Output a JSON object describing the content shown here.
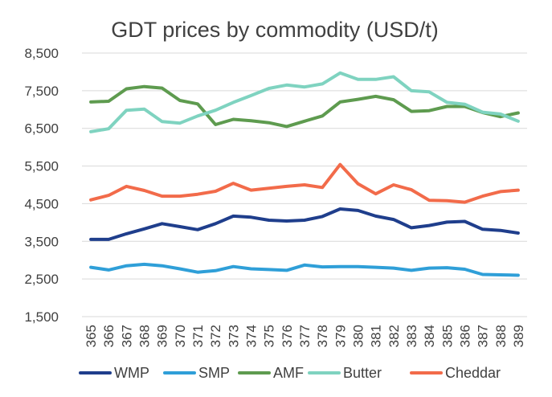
{
  "chart_data": {
    "type": "line",
    "title": "GDT prices by commodity (USD/t)",
    "xlabel": "",
    "ylabel": "",
    "ylim": [
      1500,
      8500
    ],
    "yticks": [
      1500,
      2500,
      3500,
      4500,
      5500,
      6500,
      7500,
      8500
    ],
    "ytick_labels": [
      "1,500",
      "2,500",
      "3,500",
      "4,500",
      "5,500",
      "6,500",
      "7,500",
      "8,500"
    ],
    "grid": true,
    "legend_position": "bottom",
    "categories": [
      "365",
      "366",
      "367",
      "368",
      "369",
      "370",
      "371",
      "372",
      "373",
      "374",
      "375",
      "376",
      "377",
      "378",
      "379",
      "380",
      "381",
      "382",
      "383",
      "384",
      "385",
      "386",
      "387",
      "388",
      "389"
    ],
    "series": [
      {
        "name": "WMP",
        "color": "#1f3e8c",
        "values": [
          3550,
          3550,
          3700,
          3830,
          3970,
          3890,
          3810,
          3970,
          4170,
          4140,
          4060,
          4040,
          4060,
          4160,
          4360,
          4320,
          4170,
          4080,
          3860,
          3920,
          4010,
          4030,
          3820,
          3790,
          3720
        ]
      },
      {
        "name": "SMP",
        "color": "#2f9fd8",
        "values": [
          2810,
          2740,
          2850,
          2890,
          2850,
          2770,
          2680,
          2720,
          2830,
          2770,
          2750,
          2730,
          2870,
          2820,
          2830,
          2830,
          2810,
          2790,
          2730,
          2790,
          2800,
          2760,
          2620,
          2610,
          2600
        ]
      },
      {
        "name": "AMF",
        "color": "#5e9b4f",
        "values": [
          7200,
          7220,
          7550,
          7610,
          7570,
          7240,
          7150,
          6600,
          6740,
          6700,
          6650,
          6550,
          6690,
          6830,
          7200,
          7270,
          7350,
          7260,
          6950,
          6970,
          7080,
          7080,
          6920,
          6810,
          6910
        ]
      },
      {
        "name": "Butter",
        "color": "#7fd3c0",
        "values": [
          6410,
          6490,
          6980,
          7010,
          6680,
          6640,
          6830,
          6980,
          7190,
          7370,
          7560,
          7650,
          7600,
          7680,
          7970,
          7800,
          7800,
          7870,
          7500,
          7470,
          7190,
          7140,
          6930,
          6880,
          6690
        ]
      },
      {
        "name": "Cheddar",
        "color": "#f26b4a",
        "values": [
          4600,
          4720,
          4960,
          4850,
          4700,
          4700,
          4750,
          4830,
          5040,
          4860,
          4910,
          4960,
          5000,
          4930,
          5540,
          5030,
          4760,
          5000,
          4870,
          4590,
          4580,
          4540,
          4700,
          4820,
          4860
        ]
      }
    ]
  }
}
